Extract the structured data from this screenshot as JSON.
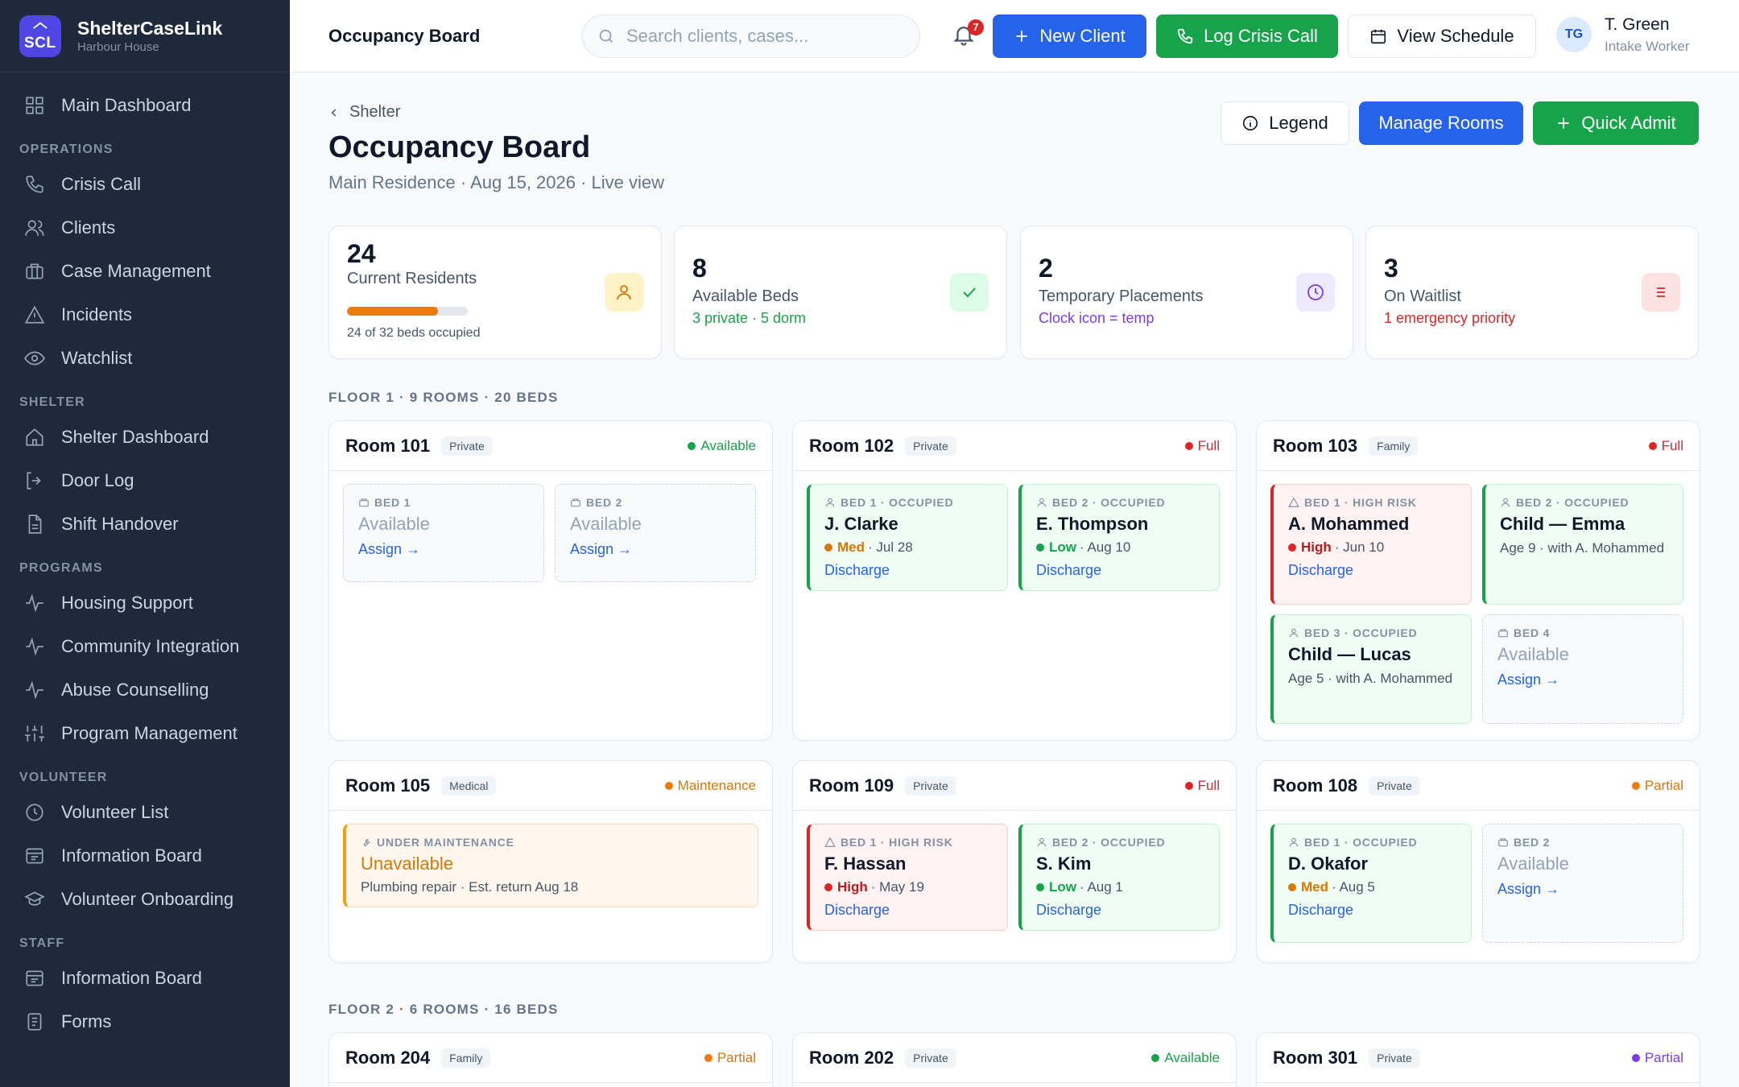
{
  "app": {
    "name": "ShelterCaseLink",
    "logo_text": "SCL",
    "org": "Harbour House"
  },
  "sidebar": {
    "top_item": {
      "label": "Main Dashboard",
      "icon": "grid-icon"
    },
    "sections": [
      {
        "title": "OPERATIONS",
        "items": [
          {
            "label": "Crisis Call",
            "icon": "phone-icon"
          },
          {
            "label": "Clients",
            "icon": "users-icon"
          },
          {
            "label": "Case Management",
            "icon": "briefcase-icon"
          },
          {
            "label": "Incidents",
            "icon": "alert-triangle-icon"
          },
          {
            "label": "Watchlist",
            "icon": "eye-icon"
          }
        ]
      },
      {
        "title": "SHELTER",
        "items": [
          {
            "label": "Shelter Dashboard",
            "icon": "home-icon"
          },
          {
            "label": "Door Log",
            "icon": "door-icon"
          },
          {
            "label": "Shift Handover",
            "icon": "file-icon"
          }
        ]
      },
      {
        "title": "PROGRAMS",
        "items": [
          {
            "label": "Housing Support",
            "icon": "activity-icon"
          },
          {
            "label": "Community Integration",
            "icon": "activity-icon"
          },
          {
            "label": "Abuse Counselling",
            "icon": "activity-icon"
          },
          {
            "label": "Program Management",
            "icon": "sliders-icon"
          }
        ]
      },
      {
        "title": "VOLUNTEER",
        "items": [
          {
            "label": "Volunteer List",
            "icon": "clock-icon"
          },
          {
            "label": "Information Board",
            "icon": "board-icon"
          },
          {
            "label": "Volunteer Onboarding",
            "icon": "graduation-icon"
          }
        ]
      },
      {
        "title": "STAFF",
        "items": [
          {
            "label": "Information Board",
            "icon": "board-icon"
          },
          {
            "label": "Forms",
            "icon": "form-icon"
          }
        ]
      }
    ]
  },
  "topbar": {
    "title": "Occupancy Board",
    "search_placeholder": "Search clients, cases...",
    "notifications_count": "7",
    "new_client": "New Client",
    "log_crisis_call": "Log Crisis Call",
    "view_schedule": "View Schedule",
    "user": {
      "initials": "TG",
      "name": "T. Green",
      "role": "Intake Worker"
    }
  },
  "page": {
    "breadcrumb": "Shelter",
    "title": "Occupancy Board",
    "subtitle": "Main Residence · Aug 15, 2026 · Live view",
    "legend_button": "Legend",
    "manage_rooms_button": "Manage Rooms",
    "quick_admit_button": "Quick Admit"
  },
  "stats": {
    "residents": {
      "value": "24",
      "label": "Current Residents",
      "note": "24 of 32 beds occupied",
      "occupancy_fraction": 0.75
    },
    "available": {
      "value": "8",
      "label": "Available Beds",
      "note": "3 private · 5 dorm"
    },
    "temporary": {
      "value": "2",
      "label": "Temporary Placements",
      "note": "Clock icon = temp"
    },
    "waitlist": {
      "value": "3",
      "label": "On Waitlist",
      "note": "1 emergency priority"
    }
  },
  "colors": {
    "blue": "#2563eb",
    "green": "#16a34a",
    "red": "#dc2626",
    "orange": "#ea7b0c",
    "purple": "#7c3aed",
    "sidebar_bg": "#1e293b"
  },
  "floors": [
    {
      "label": "FLOOR 1 · 9 ROOMS · 20 BEDS"
    },
    {
      "label": "FLOOR 2 · 6 ROOMS · 16 BEDS"
    }
  ],
  "rooms": {
    "r101": {
      "name": "Room 101",
      "type": "Private",
      "status": "Available",
      "beds": [
        {
          "label": "BED 1",
          "name": "Available",
          "link": "Assign →"
        },
        {
          "label": "BED 2",
          "name": "Available",
          "link": "Assign →"
        }
      ]
    },
    "r102": {
      "name": "Room 102",
      "type": "Private",
      "status": "Full",
      "beds": [
        {
          "label": "BED 1 · OCCUPIED",
          "name": "J. Clarke",
          "risk": "Med",
          "date": "· Jul 28",
          "link": "Discharge"
        },
        {
          "label": "BED 2 · OCCUPIED",
          "name": "E. Thompson",
          "risk": "Low",
          "date": "· Aug 10",
          "link": "Discharge"
        }
      ]
    },
    "r103": {
      "name": "Room 103",
      "type": "Family",
      "status": "Full",
      "beds": [
        {
          "label": "BED 1 · HIGH RISK",
          "name": "A. Mohammed",
          "risk": "High",
          "date": "· Jun 10",
          "link": "Discharge"
        },
        {
          "label": "BED 2 · OCCUPIED",
          "name": "Child — Emma",
          "meta": "Age 9 · with A. Mohammed"
        },
        {
          "label": "BED 3 · OCCUPIED",
          "name": "Child — Lucas",
          "meta": "Age 5 · with A. Mohammed"
        },
        {
          "label": "BED 4",
          "name": "Available",
          "link": "Assign →"
        }
      ]
    },
    "r105": {
      "name": "Room 105",
      "type": "Medical",
      "status": "Maintenance",
      "beds": [
        {
          "label": "UNDER MAINTENANCE",
          "name": "Unavailable",
          "meta": "Plumbing repair · Est. return Aug 18"
        }
      ]
    },
    "r109": {
      "name": "Room 109",
      "type": "Private",
      "status": "Full",
      "beds": [
        {
          "label": "BED 1 · HIGH RISK",
          "name": "F. Hassan",
          "risk": "High",
          "date": "· May 19",
          "link": "Discharge"
        },
        {
          "label": "BED 2 · OCCUPIED",
          "name": "S. Kim",
          "risk": "Low",
          "date": "· Aug 1",
          "link": "Discharge"
        }
      ]
    },
    "r108": {
      "name": "Room 108",
      "type": "Private",
      "status": "Partial",
      "beds": [
        {
          "label": "BED 1 · OCCUPIED",
          "name": "D. Okafor",
          "risk": "Med",
          "date": "· Aug 5",
          "link": "Discharge"
        },
        {
          "label": "BED 2",
          "name": "Available",
          "link": "Assign →"
        }
      ]
    },
    "r204": {
      "name": "Room 204",
      "type": "Family",
      "status": "Partial"
    },
    "r202": {
      "name": "Room 202",
      "type": "Private",
      "status": "Available"
    },
    "r301": {
      "name": "Room 301",
      "type": "Private",
      "status": "Partial"
    }
  }
}
